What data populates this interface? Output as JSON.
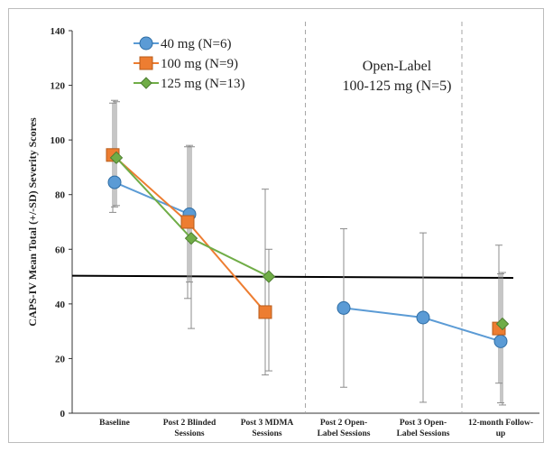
{
  "chart_data": {
    "type": "line",
    "ylabel": "CAPS-IV  Mean Total (+/-SD) Severity Scores",
    "xlabel": "",
    "ylim": [
      0,
      140
    ],
    "yticks": [
      "0",
      "20",
      "40",
      "60",
      "80",
      "100",
      "120",
      "140"
    ],
    "categories": [
      [
        "Baseline"
      ],
      [
        "Post 2 Blinded",
        "Sessions"
      ],
      [
        "Post 3 MDMA",
        "Sessions"
      ],
      [
        "Post 2 Open-",
        "Label Sessions"
      ],
      [
        "Post 3 Open-",
        "Label Sessions"
      ],
      [
        "12-month Follow-",
        "up"
      ]
    ],
    "series": [
      {
        "name": "40 mg (N=6)",
        "marker": "circle",
        "color": "#5b9bd5",
        "values": [
          84.5,
          72.8,
          null,
          38.5,
          35.0,
          26.3
        ],
        "err_low": [
          75.5,
          48.0,
          null,
          9.5,
          4.0,
          3.8
        ],
        "err_high": [
          114.5,
          98.0,
          null,
          67.5,
          66.0,
          51.0
        ]
      },
      {
        "name": "100 mg (N=9)",
        "marker": "square",
        "color": "#ed7d31",
        "values": [
          94.5,
          70.0,
          37.0,
          null,
          null,
          31.0
        ],
        "err_low": [
          73.5,
          42.0,
          14.0,
          null,
          null,
          11.0
        ],
        "err_high": [
          113.5,
          97.5,
          82.0,
          null,
          null,
          61.5
        ]
      },
      {
        "name": "125 mg (N=13)",
        "marker": "diamond",
        "color": "#70ad47",
        "values": [
          93.5,
          64.0,
          50.0,
          null,
          null,
          32.7
        ],
        "err_low": [
          76.0,
          31.0,
          15.5,
          null,
          null,
          3.0
        ],
        "err_high": [
          114.0,
          97.5,
          60.0,
          null,
          null,
          51.5
        ]
      }
    ],
    "reference_line": {
      "value": 50.3,
      "color": "#000000"
    },
    "separators_after_categories": [
      2,
      4
    ],
    "annotation": [
      "Open-Label",
      "100-125 mg (N=5)"
    ],
    "legend_position": "top-left"
  }
}
